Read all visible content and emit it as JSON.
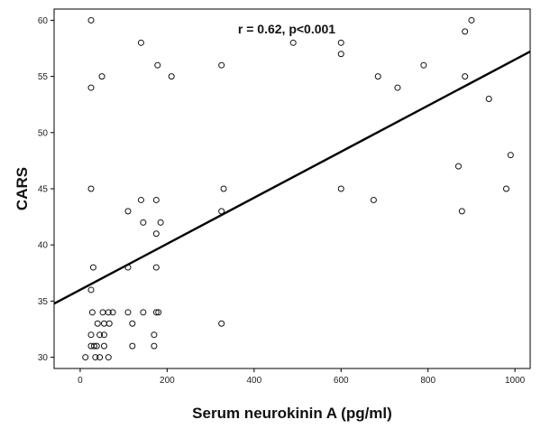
{
  "chart_data": {
    "type": "scatter",
    "title": "",
    "xlabel": "Serum neurokinin A (pg/ml)",
    "ylabel": "CARS",
    "annotation": "r = 0.62, p<0.001",
    "xlim": [
      -60,
      1035
    ],
    "ylim": [
      29,
      61
    ],
    "x_ticks": [
      0,
      200,
      400,
      600,
      800,
      1000
    ],
    "y_ticks": [
      30,
      35,
      40,
      45,
      50,
      55,
      60
    ],
    "x_tick_labels": [
      "0",
      "200",
      "400",
      "600",
      "800",
      "1000"
    ],
    "y_tick_labels": [
      "30",
      "35",
      "40",
      "45",
      "50",
      "55",
      "60"
    ],
    "grid": false,
    "marker": "open-circle",
    "series": [
      {
        "points": [
          [
            25,
            60
          ],
          [
            140,
            58
          ],
          [
            490,
            58
          ],
          [
            600,
            58
          ],
          [
            600,
            57
          ],
          [
            900,
            60
          ],
          [
            885,
            59
          ],
          [
            25,
            54
          ],
          [
            50,
            55
          ],
          [
            178,
            56
          ],
          [
            210,
            55
          ],
          [
            325,
            56
          ],
          [
            685,
            55
          ],
          [
            730,
            54
          ],
          [
            790,
            56
          ],
          [
            885,
            55
          ],
          [
            940,
            53
          ],
          [
            25,
            45
          ],
          [
            600,
            45
          ],
          [
            675,
            44
          ],
          [
            870,
            47
          ],
          [
            990,
            48
          ],
          [
            980,
            45
          ],
          [
            878,
            43
          ],
          [
            330,
            45
          ],
          [
            325,
            43
          ],
          [
            110,
            43
          ],
          [
            140,
            44
          ],
          [
            145,
            42
          ],
          [
            175,
            44
          ],
          [
            185,
            42
          ],
          [
            175,
            41
          ],
          [
            30,
            38
          ],
          [
            110,
            38
          ],
          [
            175,
            38
          ],
          [
            25,
            36
          ],
          [
            28,
            34
          ],
          [
            52,
            34
          ],
          [
            65,
            34
          ],
          [
            75,
            34
          ],
          [
            110,
            34
          ],
          [
            145,
            34
          ],
          [
            175,
            34
          ],
          [
            180,
            34
          ],
          [
            40,
            33
          ],
          [
            55,
            33
          ],
          [
            67,
            33
          ],
          [
            120,
            33
          ],
          [
            325,
            33
          ],
          [
            25,
            32
          ],
          [
            45,
            32
          ],
          [
            55,
            32
          ],
          [
            170,
            32
          ],
          [
            25,
            31
          ],
          [
            32,
            31
          ],
          [
            38,
            31
          ],
          [
            55,
            31
          ],
          [
            120,
            31
          ],
          [
            170,
            31
          ],
          [
            12,
            30
          ],
          [
            35,
            30
          ],
          [
            45,
            30
          ],
          [
            65,
            30
          ]
        ]
      }
    ],
    "regression_line": {
      "intercept": 36.0,
      "slope": 0.0205
    }
  },
  "colors": {
    "axis": "#000000",
    "marker": "#111111",
    "line": "#000000",
    "background": "#ffffff"
  }
}
